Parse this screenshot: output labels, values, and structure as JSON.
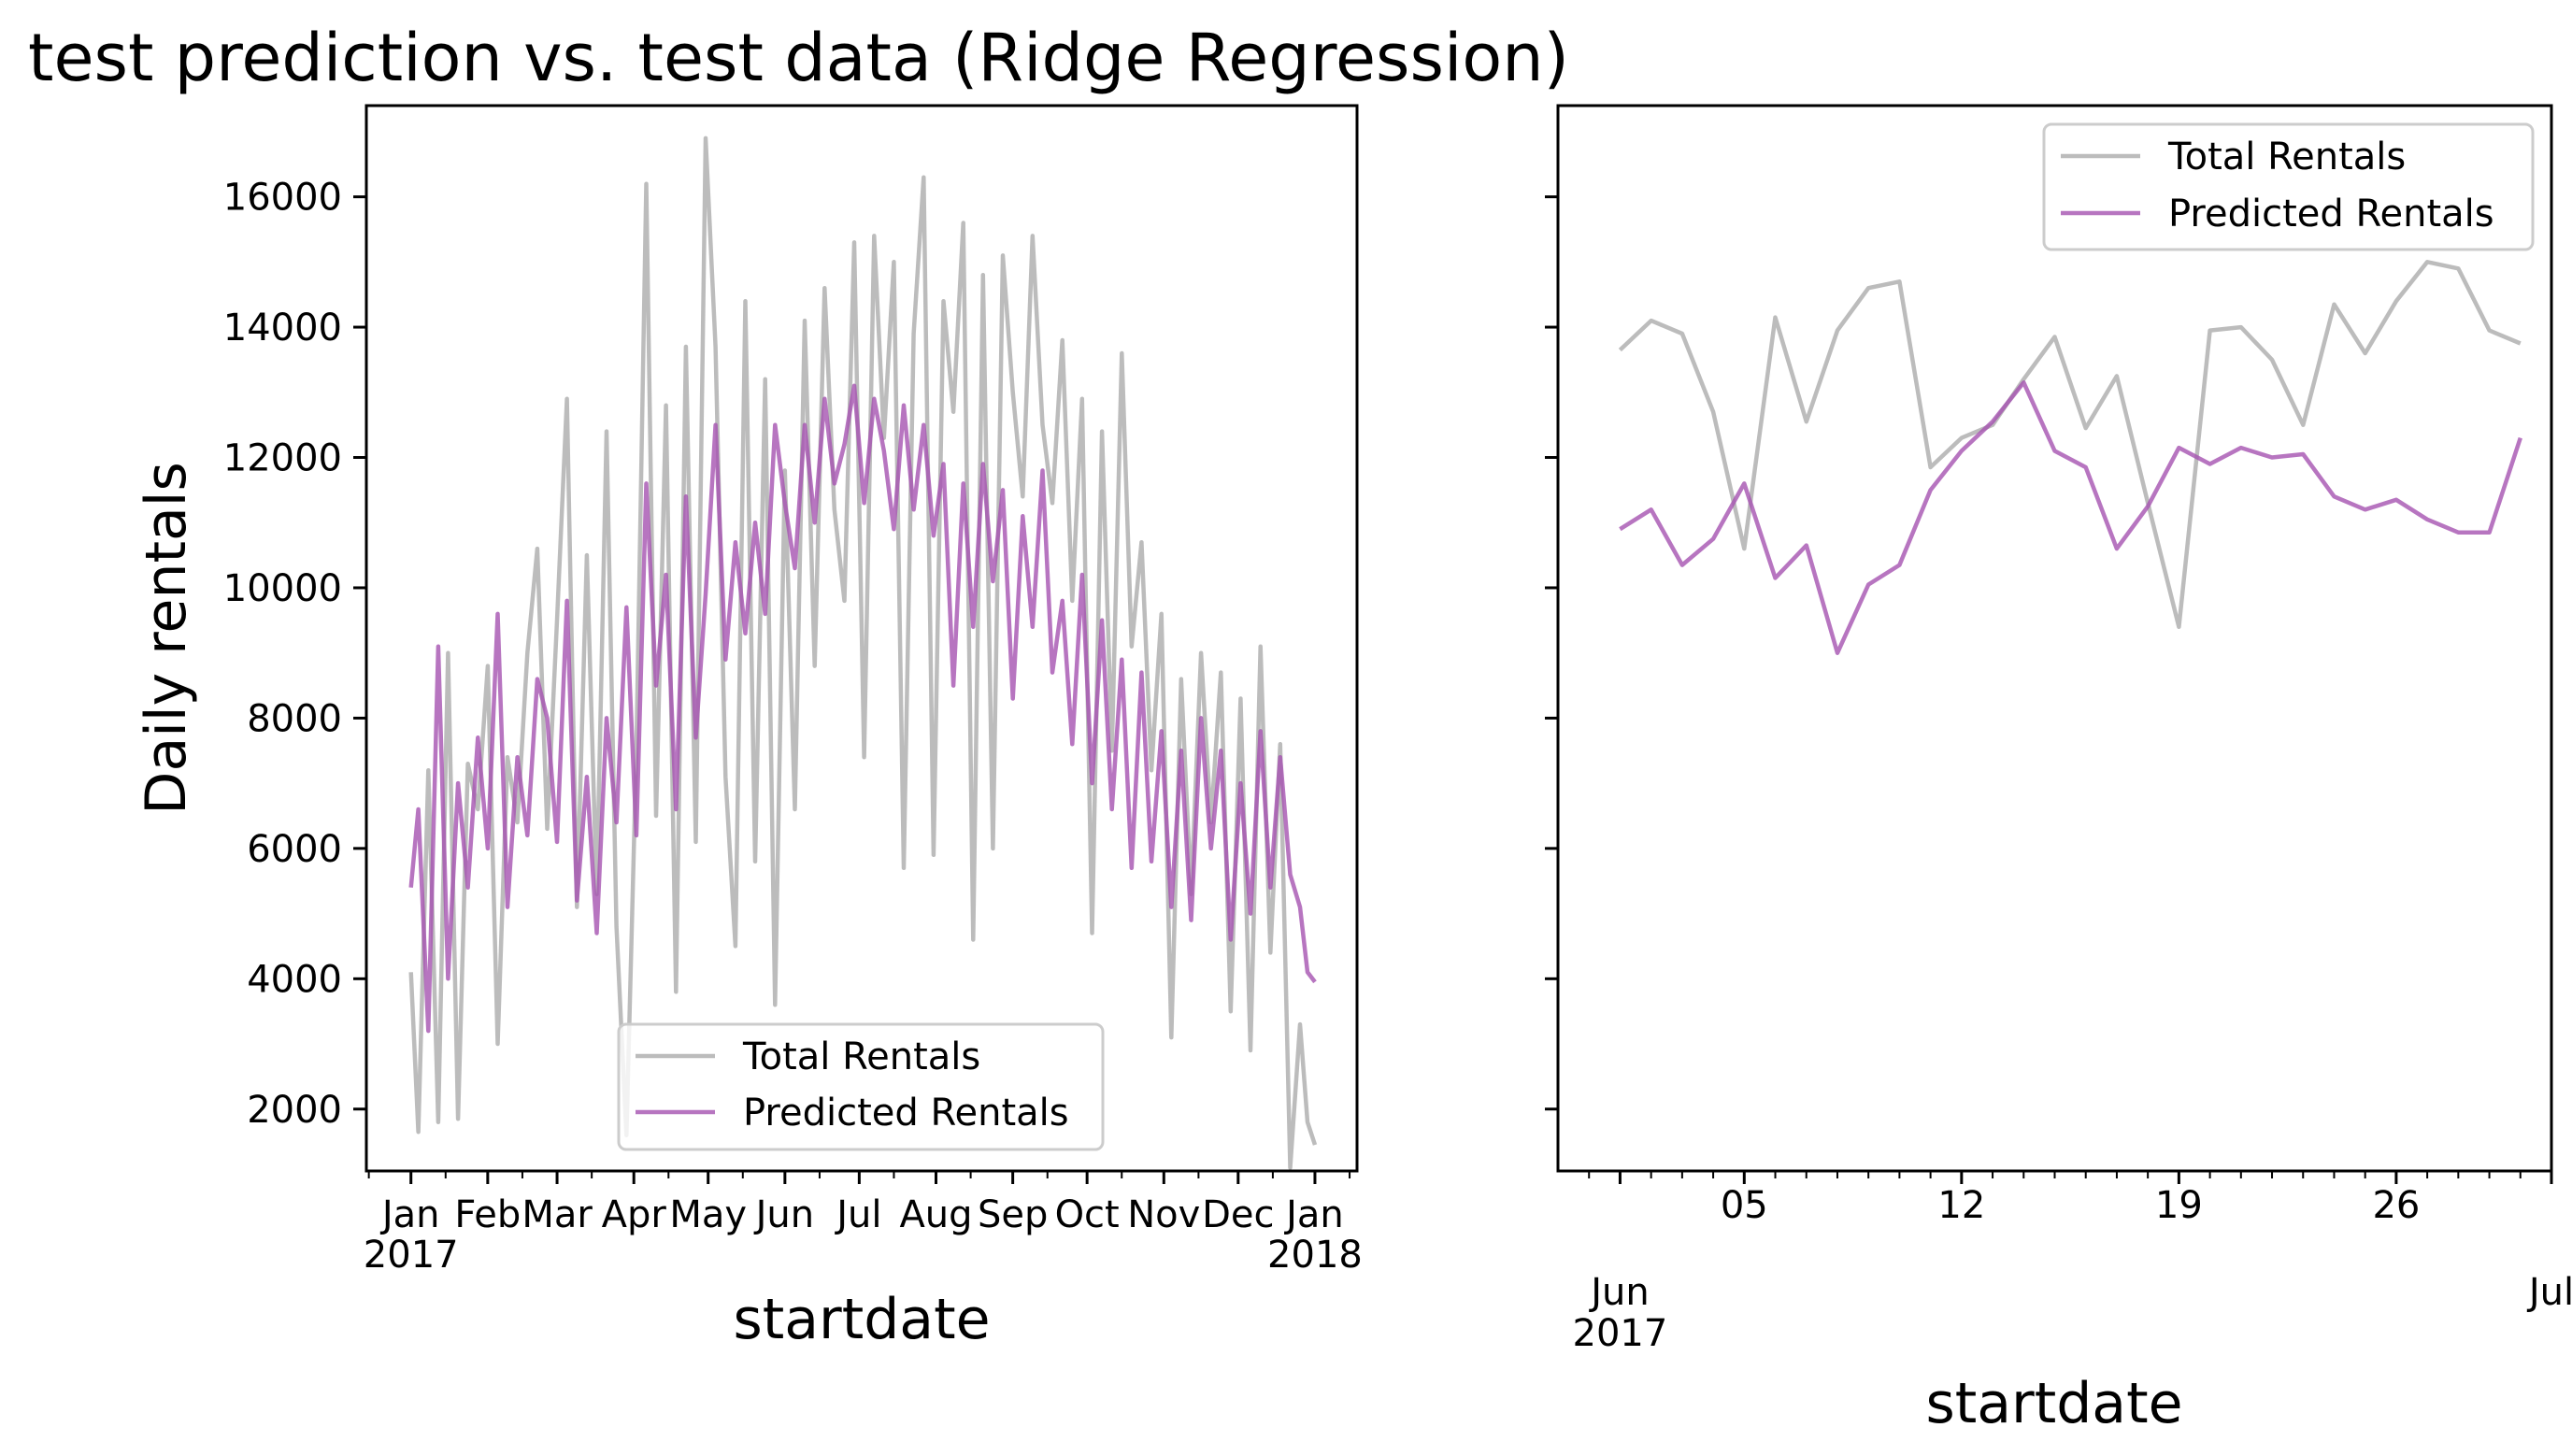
{
  "title": "test prediction vs. test data (Ridge Regression)",
  "colors": {
    "actual": "#b0b0b0",
    "predicted": "#a552b0"
  },
  "chart_data": [
    {
      "type": "line",
      "xlabel": "startdate",
      "ylabel": "Daily rentals",
      "xlim": [
        "2016-12-14",
        "2018-01-18"
      ],
      "ylim": [
        1050,
        17400
      ],
      "yticks": [
        2000,
        4000,
        6000,
        8000,
        10000,
        12000,
        14000,
        16000
      ],
      "ytick_labels": [
        "2000",
        "4000",
        "6000",
        "8000",
        "10000",
        "12000",
        "14000",
        "16000"
      ],
      "xticks": [
        {
          "date": "2017-01-01",
          "label": "Jan",
          "sublabel": "2017"
        },
        {
          "date": "2017-02-01",
          "label": "Feb",
          "sublabel": ""
        },
        {
          "date": "2017-03-01",
          "label": "Mar",
          "sublabel": ""
        },
        {
          "date": "2017-04-01",
          "label": "Apr",
          "sublabel": ""
        },
        {
          "date": "2017-05-01",
          "label": "May",
          "sublabel": ""
        },
        {
          "date": "2017-06-01",
          "label": "Jun",
          "sublabel": ""
        },
        {
          "date": "2017-07-01",
          "label": "Jul",
          "sublabel": ""
        },
        {
          "date": "2017-08-01",
          "label": "Aug",
          "sublabel": ""
        },
        {
          "date": "2017-09-01",
          "label": "Sep",
          "sublabel": ""
        },
        {
          "date": "2017-10-01",
          "label": "Oct",
          "sublabel": ""
        },
        {
          "date": "2017-11-01",
          "label": "Nov",
          "sublabel": ""
        },
        {
          "date": "2017-12-01",
          "label": "Dec",
          "sublabel": ""
        },
        {
          "date": "2018-01-01",
          "label": "Jan",
          "sublabel": "2018"
        }
      ],
      "legend": "lower-center",
      "series": [
        {
          "name": "Total Rentals",
          "x": [
            "2017-01-01",
            "2017-01-04",
            "2017-01-08",
            "2017-01-12",
            "2017-01-16",
            "2017-01-20",
            "2017-01-24",
            "2017-01-28",
            "2017-02-01",
            "2017-02-05",
            "2017-02-09",
            "2017-02-13",
            "2017-02-17",
            "2017-02-21",
            "2017-02-25",
            "2017-03-01",
            "2017-03-05",
            "2017-03-09",
            "2017-03-13",
            "2017-03-17",
            "2017-03-21",
            "2017-03-25",
            "2017-03-29",
            "2017-04-02",
            "2017-04-06",
            "2017-04-10",
            "2017-04-14",
            "2017-04-18",
            "2017-04-22",
            "2017-04-26",
            "2017-04-30",
            "2017-05-04",
            "2017-05-08",
            "2017-05-12",
            "2017-05-16",
            "2017-05-20",
            "2017-05-24",
            "2017-05-28",
            "2017-06-01",
            "2017-06-05",
            "2017-06-09",
            "2017-06-13",
            "2017-06-17",
            "2017-06-21",
            "2017-06-25",
            "2017-06-29",
            "2017-07-03",
            "2017-07-07",
            "2017-07-11",
            "2017-07-15",
            "2017-07-19",
            "2017-07-23",
            "2017-07-27",
            "2017-07-31",
            "2017-08-04",
            "2017-08-08",
            "2017-08-12",
            "2017-08-16",
            "2017-08-20",
            "2017-08-24",
            "2017-08-28",
            "2017-09-01",
            "2017-09-05",
            "2017-09-09",
            "2017-09-13",
            "2017-09-17",
            "2017-09-21",
            "2017-09-25",
            "2017-09-29",
            "2017-10-03",
            "2017-10-07",
            "2017-10-11",
            "2017-10-15",
            "2017-10-19",
            "2017-10-23",
            "2017-10-27",
            "2017-10-31",
            "2017-11-04",
            "2017-11-08",
            "2017-11-12",
            "2017-11-16",
            "2017-11-20",
            "2017-11-24",
            "2017-11-28",
            "2017-12-02",
            "2017-12-06",
            "2017-12-10",
            "2017-12-14",
            "2017-12-18",
            "2017-12-22",
            "2017-12-26",
            "2017-12-29",
            "2018-01-01"
          ],
          "y": [
            4100,
            1650,
            7200,
            1800,
            9000,
            1850,
            7300,
            6600,
            8800,
            3000,
            7400,
            6400,
            9000,
            10600,
            6300,
            9500,
            12900,
            5100,
            10500,
            5300,
            12400,
            4800,
            1600,
            7500,
            16200,
            6500,
            12800,
            3800,
            13700,
            6100,
            16900,
            13700,
            7100,
            4500,
            14400,
            5800,
            13200,
            3600,
            11800,
            6600,
            14100,
            8800,
            14600,
            11200,
            9800,
            15300,
            7400,
            15400,
            12300,
            15000,
            5700,
            13900,
            16300,
            5900,
            14400,
            12700,
            15600,
            4600,
            14800,
            6000,
            15100,
            13000,
            11400,
            15400,
            12500,
            11300,
            13800,
            9800,
            12900,
            4700,
            12400,
            7500,
            13600,
            9100,
            10700,
            7200,
            9600,
            3100,
            8600,
            5300,
            9000,
            6400,
            8700,
            3500,
            8300,
            2900,
            9100,
            4400,
            7600,
            1100,
            3300,
            1800,
            1450
          ]
        },
        {
          "name": "Predicted Rentals",
          "x": [
            "2017-01-01",
            "2017-01-04",
            "2017-01-08",
            "2017-01-12",
            "2017-01-16",
            "2017-01-20",
            "2017-01-24",
            "2017-01-28",
            "2017-02-01",
            "2017-02-05",
            "2017-02-09",
            "2017-02-13",
            "2017-02-17",
            "2017-02-21",
            "2017-02-25",
            "2017-03-01",
            "2017-03-05",
            "2017-03-09",
            "2017-03-13",
            "2017-03-17",
            "2017-03-21",
            "2017-03-25",
            "2017-03-29",
            "2017-04-02",
            "2017-04-06",
            "2017-04-10",
            "2017-04-14",
            "2017-04-18",
            "2017-04-22",
            "2017-04-26",
            "2017-04-30",
            "2017-05-04",
            "2017-05-08",
            "2017-05-12",
            "2017-05-16",
            "2017-05-20",
            "2017-05-24",
            "2017-05-28",
            "2017-06-01",
            "2017-06-05",
            "2017-06-09",
            "2017-06-13",
            "2017-06-17",
            "2017-06-21",
            "2017-06-25",
            "2017-06-29",
            "2017-07-03",
            "2017-07-07",
            "2017-07-11",
            "2017-07-15",
            "2017-07-19",
            "2017-07-23",
            "2017-07-27",
            "2017-07-31",
            "2017-08-04",
            "2017-08-08",
            "2017-08-12",
            "2017-08-16",
            "2017-08-20",
            "2017-08-24",
            "2017-08-28",
            "2017-09-01",
            "2017-09-05",
            "2017-09-09",
            "2017-09-13",
            "2017-09-17",
            "2017-09-21",
            "2017-09-25",
            "2017-09-29",
            "2017-10-03",
            "2017-10-07",
            "2017-10-11",
            "2017-10-15",
            "2017-10-19",
            "2017-10-23",
            "2017-10-27",
            "2017-10-31",
            "2017-11-04",
            "2017-11-08",
            "2017-11-12",
            "2017-11-16",
            "2017-11-20",
            "2017-11-24",
            "2017-11-28",
            "2017-12-02",
            "2017-12-06",
            "2017-12-10",
            "2017-12-14",
            "2017-12-18",
            "2017-12-22",
            "2017-12-26",
            "2017-12-29",
            "2018-01-01"
          ],
          "y": [
            5400,
            6600,
            3200,
            9100,
            4000,
            7000,
            5400,
            7700,
            6000,
            9600,
            5100,
            7400,
            6200,
            8600,
            8000,
            6100,
            9800,
            5200,
            7100,
            4700,
            8000,
            6400,
            9700,
            6200,
            11600,
            8500,
            10200,
            6600,
            11400,
            7700,
            9900,
            12500,
            8900,
            10700,
            9300,
            11000,
            9600,
            12500,
            11300,
            10300,
            12500,
            11000,
            12900,
            11600,
            12200,
            13100,
            11300,
            12900,
            12100,
            10900,
            12800,
            11200,
            12500,
            10800,
            11900,
            8500,
            11600,
            9400,
            11900,
            10100,
            11500,
            8300,
            11100,
            9400,
            11800,
            8700,
            9800,
            7600,
            10200,
            7000,
            9500,
            6600,
            8900,
            5700,
            8700,
            5800,
            7800,
            5100,
            7500,
            4900,
            8000,
            6000,
            7500,
            4600,
            7000,
            5000,
            7800,
            5400,
            7400,
            5600,
            5100,
            4100,
            3950
          ]
        }
      ]
    },
    {
      "type": "line",
      "xlabel": "startdate",
      "ylabel": "",
      "xlim": [
        "2017-05-30",
        "2017-07-01"
      ],
      "ylim": [
        1050,
        17400
      ],
      "yticks": [
        2000,
        4000,
        6000,
        8000,
        10000,
        12000,
        14000,
        16000
      ],
      "xticks": [
        {
          "date": "2017-06-01",
          "label": "Jun",
          "sublabel": "2017"
        },
        {
          "date": "2017-06-05",
          "label": "05",
          "sublabel": ""
        },
        {
          "date": "2017-06-12",
          "label": "12",
          "sublabel": ""
        },
        {
          "date": "2017-06-19",
          "label": "19",
          "sublabel": ""
        },
        {
          "date": "2017-06-26",
          "label": "26",
          "sublabel": ""
        },
        {
          "date": "2017-07-01",
          "label": "Jul",
          "sublabel": ""
        }
      ],
      "legend": "upper-right",
      "series": [
        {
          "name": "Total Rentals",
          "x": [
            "2017-06-01",
            "2017-06-02",
            "2017-06-03",
            "2017-06-04",
            "2017-06-05",
            "2017-06-06",
            "2017-06-07",
            "2017-06-08",
            "2017-06-09",
            "2017-06-10",
            "2017-06-11",
            "2017-06-12",
            "2017-06-13",
            "2017-06-14",
            "2017-06-15",
            "2017-06-16",
            "2017-06-17",
            "2017-06-18",
            "2017-06-19",
            "2017-06-20",
            "2017-06-21",
            "2017-06-22",
            "2017-06-23",
            "2017-06-24",
            "2017-06-25",
            "2017-06-26",
            "2017-06-27",
            "2017-06-28",
            "2017-06-29",
            "2017-06-30"
          ],
          "y": [
            13650,
            14100,
            13900,
            12700,
            10600,
            14150,
            12550,
            13950,
            14600,
            14700,
            11850,
            12300,
            12500,
            13200,
            13850,
            12450,
            13250,
            11300,
            9400,
            13950,
            14000,
            13500,
            12500,
            14350,
            13600,
            14400,
            15000,
            14900,
            13950,
            13750
          ]
        },
        {
          "name": "Predicted Rentals",
          "x": [
            "2017-06-01",
            "2017-06-02",
            "2017-06-03",
            "2017-06-04",
            "2017-06-05",
            "2017-06-06",
            "2017-06-07",
            "2017-06-08",
            "2017-06-09",
            "2017-06-10",
            "2017-06-11",
            "2017-06-12",
            "2017-06-13",
            "2017-06-14",
            "2017-06-15",
            "2017-06-16",
            "2017-06-17",
            "2017-06-18",
            "2017-06-19",
            "2017-06-20",
            "2017-06-21",
            "2017-06-22",
            "2017-06-23",
            "2017-06-24",
            "2017-06-25",
            "2017-06-26",
            "2017-06-27",
            "2017-06-28",
            "2017-06-29",
            "2017-06-30"
          ],
          "y": [
            10900,
            11200,
            10350,
            10750,
            11600,
            10150,
            10650,
            9000,
            10050,
            10350,
            11500,
            12100,
            12550,
            13150,
            12100,
            11850,
            10600,
            11250,
            12150,
            11900,
            12150,
            12000,
            12050,
            11400,
            11200,
            11350,
            11050,
            10850,
            10850,
            12300
          ]
        }
      ]
    }
  ]
}
